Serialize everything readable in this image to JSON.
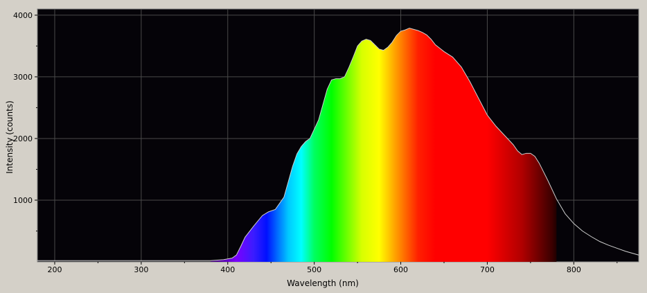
{
  "chart_data": {
    "type": "area",
    "title": "",
    "xlabel": "Wavelength (nm)",
    "ylabel": "Intensity (counts)",
    "xlim": [
      180,
      875
    ],
    "ylim": [
      0,
      4100
    ],
    "x_ticks": [
      200,
      300,
      400,
      500,
      600,
      700,
      800
    ],
    "y_ticks": [
      1000,
      2000,
      3000,
      4000
    ],
    "grid": true,
    "legend": "none",
    "colors": {
      "plot_background": "#050308",
      "grid": "#4a4a4a",
      "curve": "#cfcfcf",
      "frame": "#d4d0c8"
    },
    "fill": "visible-spectrum colors (violet to deep red), approx. 380–780 nm",
    "series": [
      {
        "x": [
          180,
          380,
          395,
          405,
          410,
          415,
          420,
          430,
          440,
          447,
          455,
          465,
          470,
          475,
          480,
          485,
          490,
          495,
          500,
          505,
          510,
          515,
          520,
          525,
          530,
          535,
          540,
          545,
          550,
          555,
          560,
          565,
          570,
          575,
          580,
          585,
          590,
          595,
          600,
          605,
          610,
          615,
          620,
          625,
          630,
          635,
          640,
          650,
          660,
          670,
          680,
          690,
          700,
          710,
          720,
          730,
          735,
          740,
          745,
          750,
          755,
          760,
          770,
          780,
          790,
          800,
          810,
          820,
          830,
          840,
          850,
          860,
          875
        ],
        "y": [
          20,
          20,
          35,
          60,
          110,
          250,
          400,
          580,
          750,
          810,
          850,
          1050,
          1300,
          1550,
          1750,
          1870,
          1950,
          2000,
          2150,
          2300,
          2550,
          2800,
          2950,
          2970,
          2970,
          3000,
          3150,
          3320,
          3500,
          3580,
          3610,
          3590,
          3520,
          3450,
          3430,
          3480,
          3560,
          3670,
          3740,
          3760,
          3790,
          3770,
          3750,
          3720,
          3680,
          3610,
          3520,
          3410,
          3320,
          3160,
          2920,
          2650,
          2380,
          2200,
          2050,
          1900,
          1800,
          1740,
          1760,
          1760,
          1710,
          1600,
          1320,
          1020,
          780,
          620,
          500,
          410,
          330,
          270,
          220,
          170,
          110
        ]
      }
    ]
  }
}
